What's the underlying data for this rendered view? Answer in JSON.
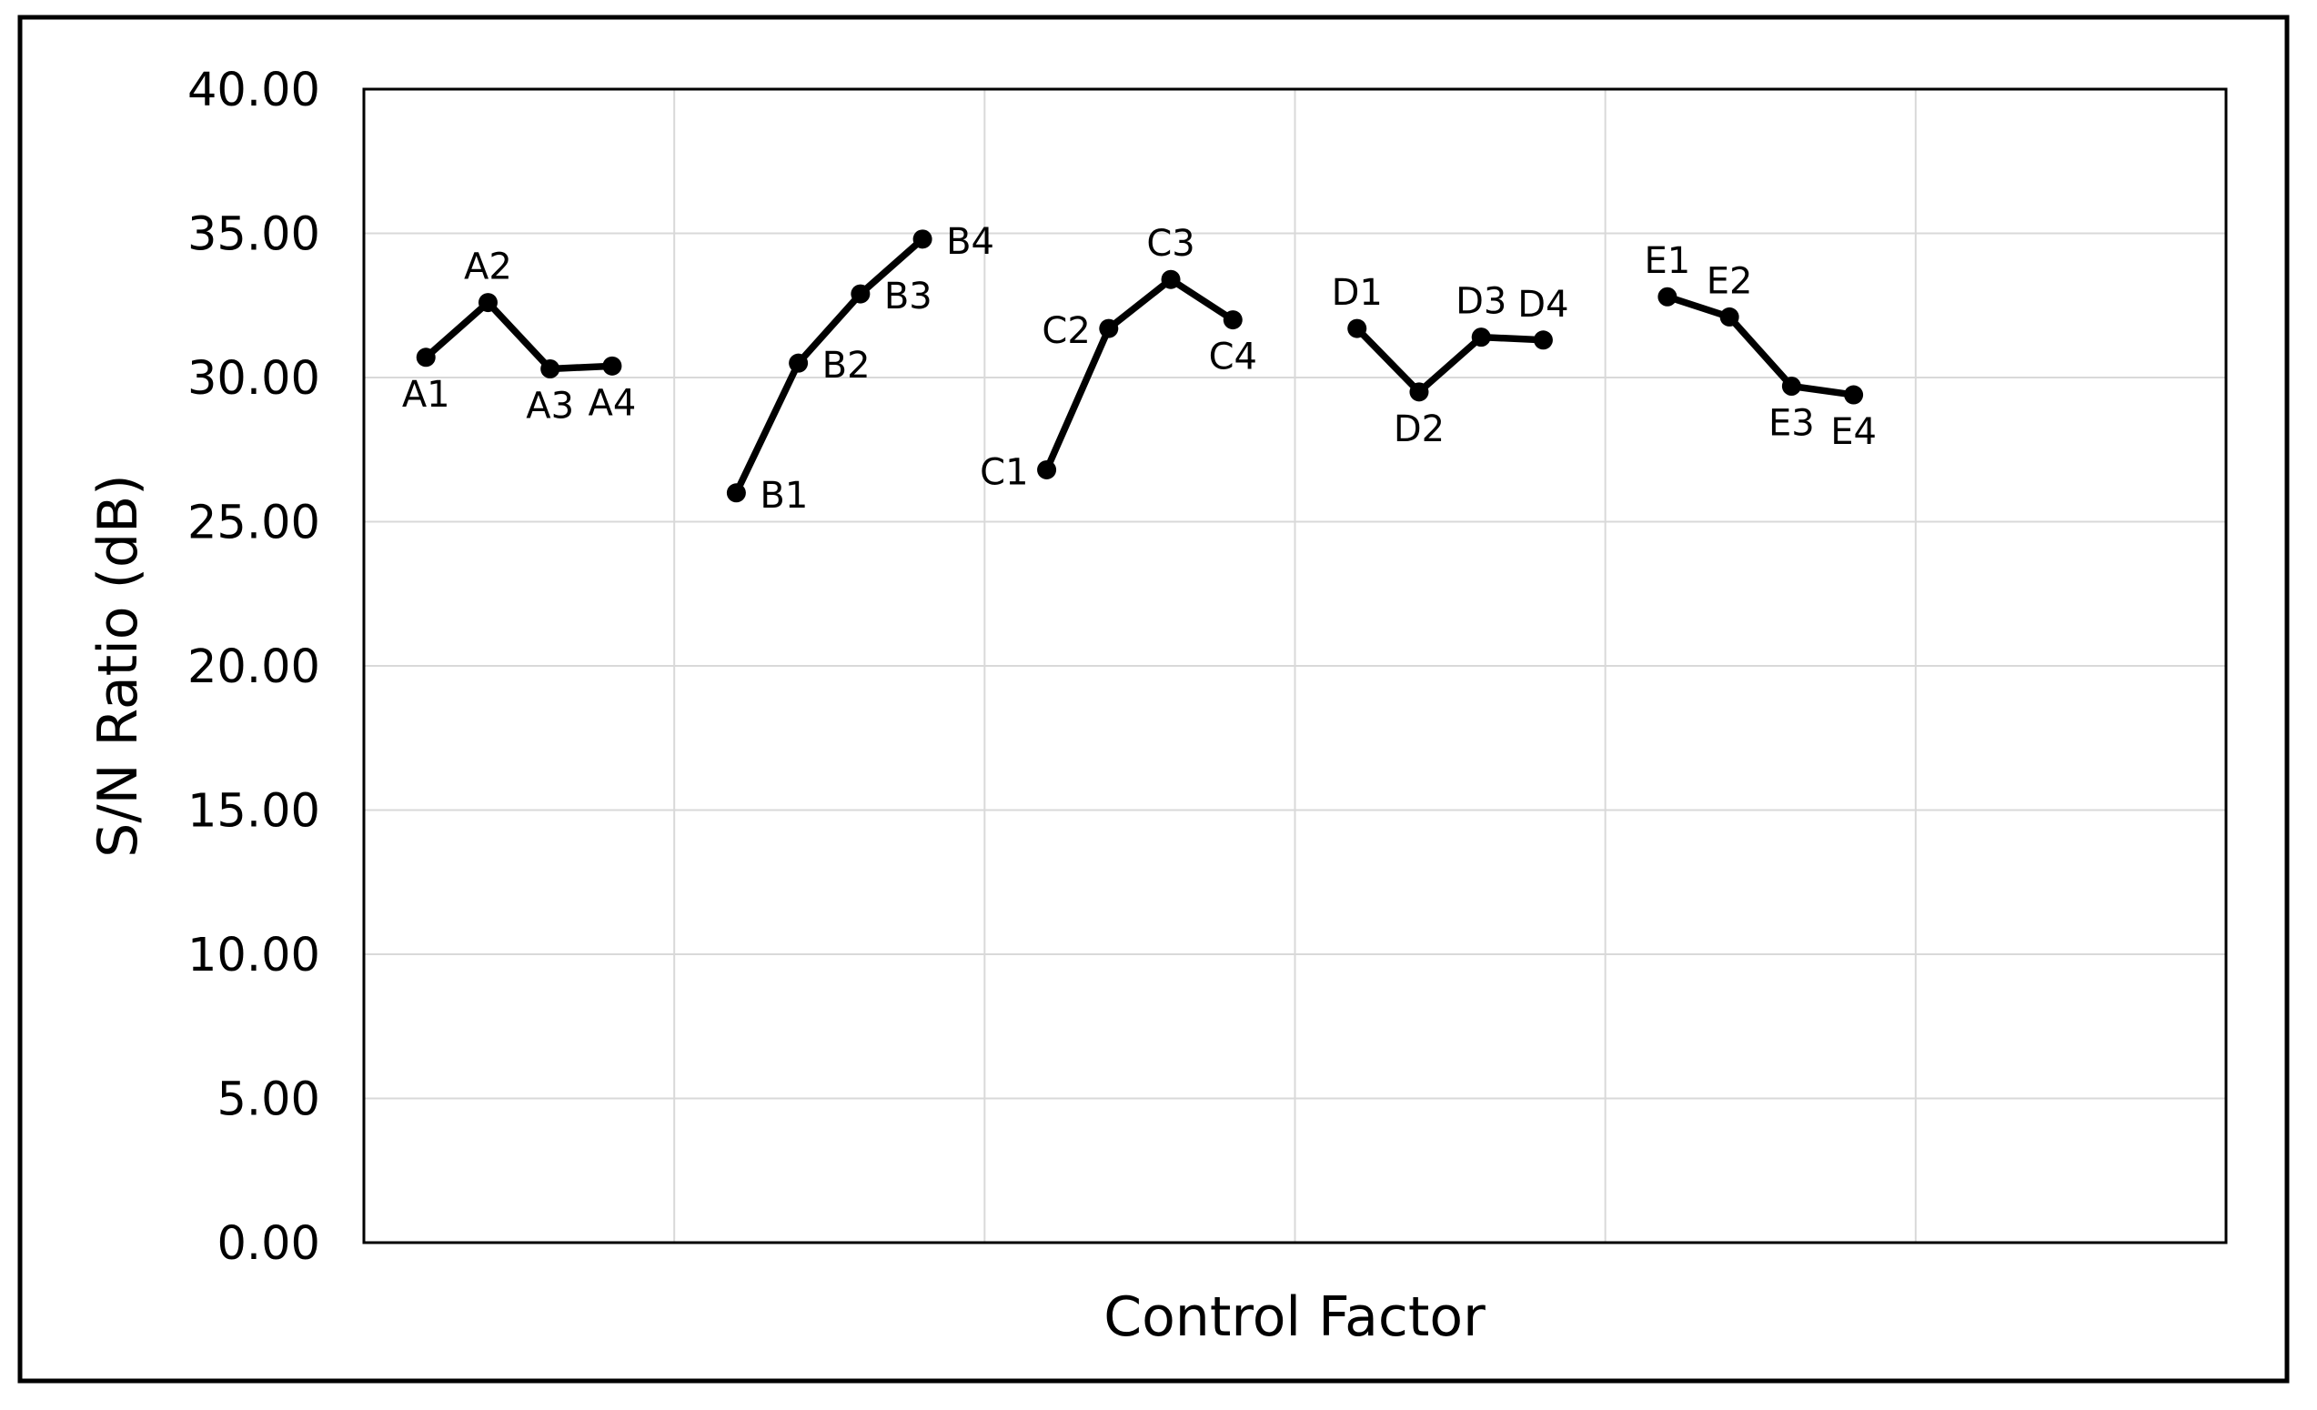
{
  "chart_data": {
    "type": "line",
    "title": "",
    "xlabel": "Control Factor",
    "ylabel": "S/N Ratio (dB)",
    "ylim": [
      0,
      40
    ],
    "xlim": [
      0,
      30
    ],
    "ytick_step": 5,
    "ytick_labels": [
      "0.00",
      "5.00",
      "10.00",
      "15.00",
      "20.00",
      "25.00",
      "30.00",
      "35.00",
      "40.00"
    ],
    "x_gridline_step": 5,
    "xtick_labels": [],
    "grid": true,
    "legend": false,
    "line_color": "#000000",
    "marker_color": "#000000",
    "grid_color": "#d9d9d9",
    "axis_color": "#000000",
    "series": [
      {
        "name": "A",
        "x": [
          1,
          2,
          3,
          4
        ],
        "values": [
          30.7,
          32.6,
          30.3,
          30.4
        ],
        "point_labels": [
          "A1",
          "A2",
          "A3",
          "A4"
        ],
        "label_positions": [
          "below",
          "above",
          "below",
          "below"
        ]
      },
      {
        "name": "B",
        "x": [
          6,
          7,
          8,
          9
        ],
        "values": [
          26.0,
          30.5,
          32.9,
          34.8
        ],
        "point_labels": [
          "B1",
          "B2",
          "B3",
          "B4"
        ],
        "label_positions": [
          "right",
          "right",
          "right",
          "right"
        ]
      },
      {
        "name": "C",
        "x": [
          11,
          12,
          13,
          14
        ],
        "values": [
          26.8,
          31.7,
          33.4,
          32.0
        ],
        "point_labels": [
          "C1",
          "C2",
          "C3",
          "C4"
        ],
        "label_positions": [
          "left",
          "left",
          "above",
          "below"
        ]
      },
      {
        "name": "D",
        "x": [
          16,
          17,
          18,
          19
        ],
        "values": [
          31.7,
          29.5,
          31.4,
          31.3
        ],
        "point_labels": [
          "D1",
          "D2",
          "D3",
          "D4"
        ],
        "label_positions": [
          "above",
          "below",
          "above",
          "above"
        ]
      },
      {
        "name": "E",
        "x": [
          21,
          22,
          23,
          24
        ],
        "values": [
          32.8,
          32.1,
          29.7,
          29.4
        ],
        "point_labels": [
          "E1",
          "E2",
          "E3",
          "E4"
        ],
        "label_positions": [
          "above",
          "above",
          "below",
          "below"
        ]
      }
    ]
  }
}
